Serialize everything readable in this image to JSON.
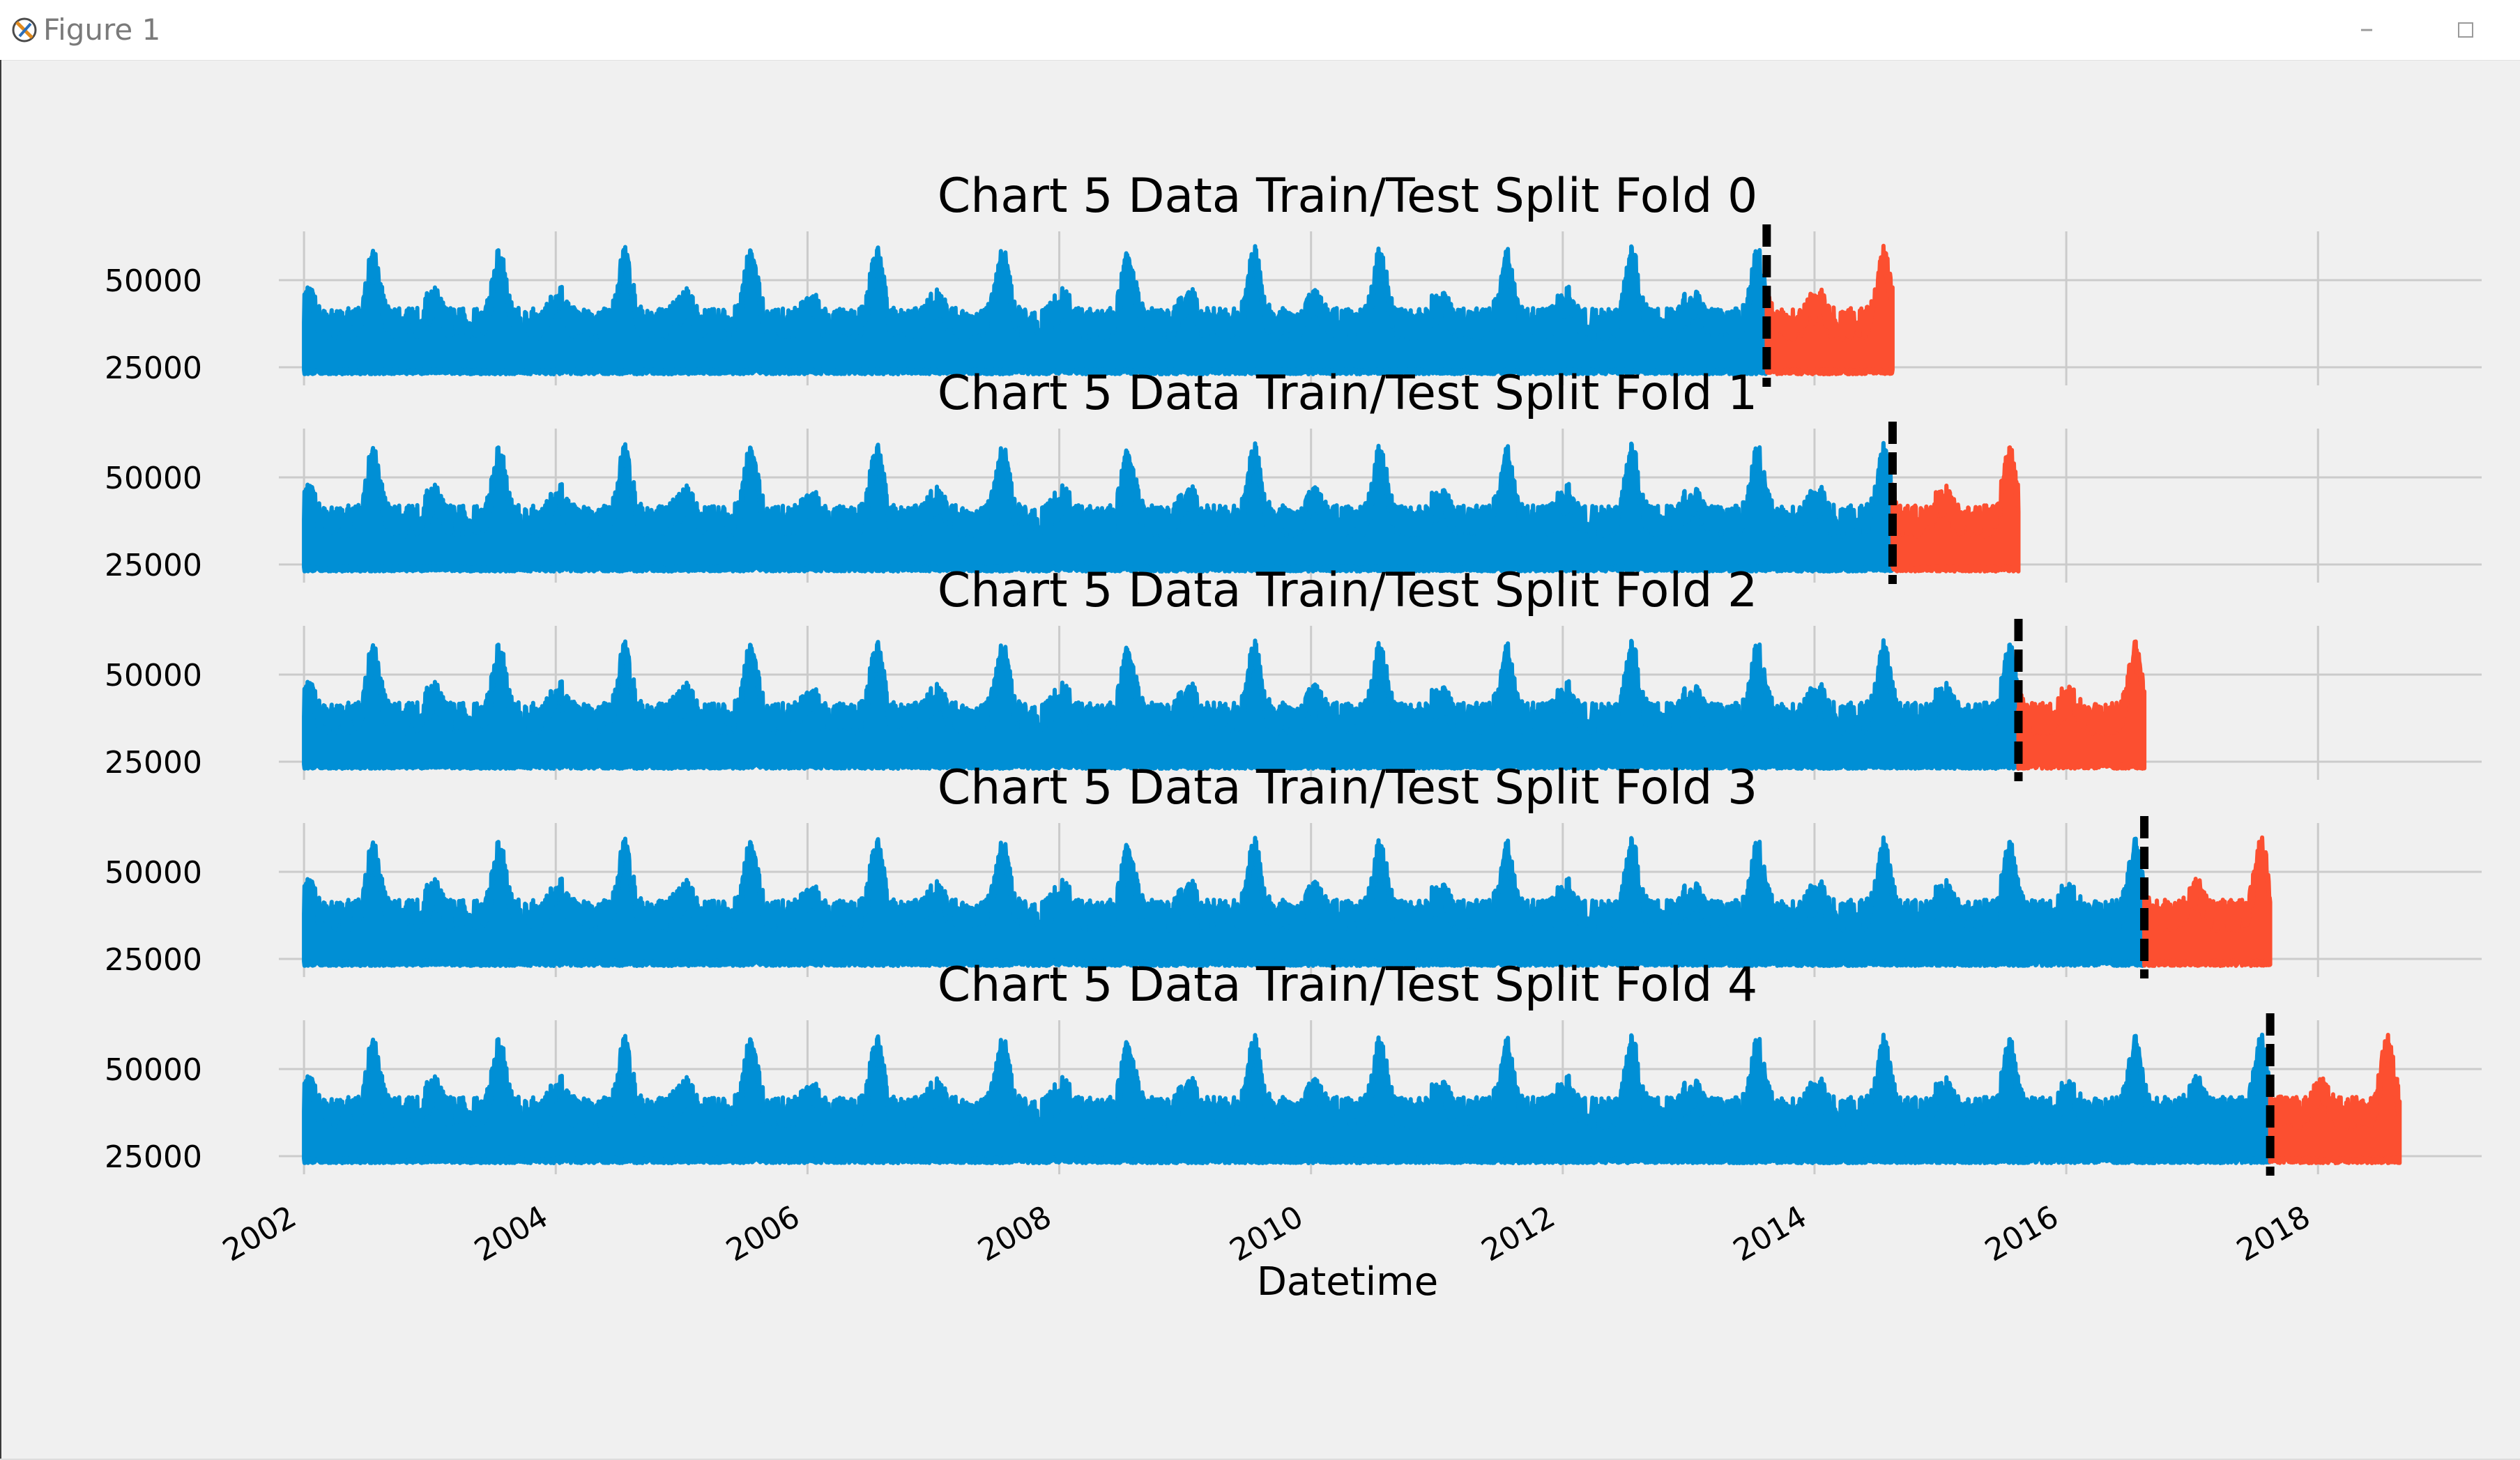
{
  "window": {
    "title": "Figure 1",
    "icon": "matplotlib-figure-icon",
    "controls": [
      "minimize-icon",
      "maximize-icon"
    ]
  },
  "colors": {
    "train": "#008fd5",
    "test": "#fc4f30",
    "split_line": "#000000",
    "grid": "#cbcbcb",
    "background": "#f0f0f0"
  },
  "chart_data": {
    "type": "line",
    "xlabel": "Datetime",
    "x_ticks": [
      "2002",
      "2004",
      "2006",
      "2008",
      "2010",
      "2012",
      "2014",
      "2016",
      "2018"
    ],
    "x_tick_years": [
      2002,
      2004,
      2006,
      2008,
      2010,
      2012,
      2014,
      2016,
      2018
    ],
    "xlim": [
      2001.8,
      2019.3
    ],
    "y_ticks": [
      25000,
      50000
    ],
    "ylim": [
      20000,
      62000
    ],
    "grid": true,
    "series_description": "hourly load, train (blue) and test (red) segments separated by a dashed vertical line",
    "folds": [
      {
        "title": "Chart 5 Data Train/Test Split Fold 0",
        "train_range": [
          2002.0,
          2013.62
        ],
        "test_range": [
          2013.62,
          2014.62
        ],
        "split": 2013.62
      },
      {
        "title": "Chart 5 Data Train/Test Split Fold 1",
        "train_range": [
          2002.0,
          2014.62
        ],
        "test_range": [
          2014.62,
          2015.62
        ],
        "split": 2014.62
      },
      {
        "title": "Chart 5 Data Train/Test Split Fold 2",
        "train_range": [
          2002.0,
          2015.62
        ],
        "test_range": [
          2015.62,
          2016.62
        ],
        "split": 2015.62
      },
      {
        "title": "Chart 5 Data Train/Test Split Fold 3",
        "train_range": [
          2002.0,
          2016.62
        ],
        "test_range": [
          2016.62,
          2017.62
        ],
        "split": 2016.62
      },
      {
        "title": "Chart 5 Data Train/Test Split Fold 4",
        "train_range": [
          2002.0,
          2017.62
        ],
        "test_range": [
          2017.62,
          2018.65
        ],
        "split": 2017.62
      }
    ]
  }
}
